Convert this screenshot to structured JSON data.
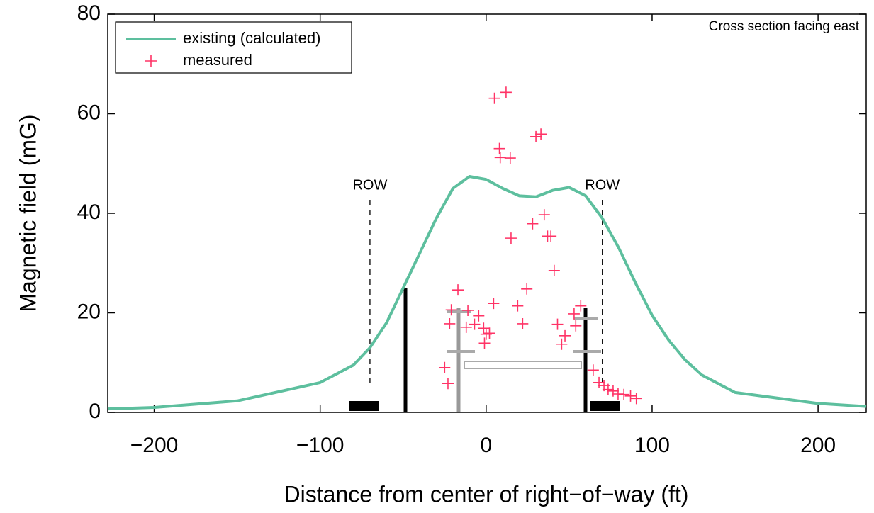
{
  "chart_data": {
    "type": "line",
    "xlabel": "Distance from center of right−of−way (ft)",
    "ylabel": "Magnetic field (mG)",
    "annotation": "Cross section facing east",
    "xlim": [
      -228,
      229
    ],
    "ylim": [
      0,
      80
    ],
    "xticks": [
      {
        "value": -200,
        "label": "−200"
      },
      {
        "value": -100,
        "label": "−100"
      },
      0,
      100,
      200
    ],
    "yticks": [
      0,
      20,
      40,
      60,
      80
    ],
    "legend": "upper left",
    "row_lines": [
      {
        "text": "ROW",
        "x": -70
      },
      {
        "text": "ROW",
        "x": 70
      }
    ],
    "series": [
      {
        "name": "existing (calculated)",
        "color": "#5dbf9e",
        "style": "line",
        "x": [
          -228,
          -200,
          -150,
          -100,
          -80,
          -70,
          -60,
          -50,
          -40,
          -30,
          -20,
          -10,
          0,
          10,
          20,
          30,
          40,
          50,
          60,
          70,
          80,
          90,
          100,
          110,
          120,
          130,
          150,
          200,
          229
        ],
        "values": [
          0.7,
          1.0,
          2.3,
          6,
          9.5,
          13,
          18,
          25,
          32,
          39,
          45,
          47.4,
          46.8,
          45,
          43.5,
          43.3,
          44.6,
          45.2,
          43.5,
          39,
          33,
          26,
          19.5,
          14.5,
          10.5,
          7.5,
          4,
          1.8,
          1.2
        ]
      },
      {
        "name": "measured",
        "color": "#ff3366",
        "style": "plus",
        "x": [
          5,
          12,
          8,
          8.5,
          14.5,
          30,
          33,
          35,
          28,
          15,
          37,
          39,
          41,
          -17,
          24.5,
          4.5,
          19,
          57,
          -21,
          -11,
          -4.5,
          -7,
          -12,
          -22,
          22,
          43,
          53,
          54,
          47.5,
          45.5,
          -1.5,
          0,
          2,
          -1,
          -25,
          -23,
          64.5,
          68,
          71,
          73.5,
          76.5,
          79.5,
          83,
          87,
          90.5
        ],
        "values": [
          63.1,
          64.3,
          53,
          51.2,
          51.1,
          55.4,
          55.9,
          39.7,
          37.9,
          35,
          35.4,
          35.4,
          28.5,
          24.6,
          24.8,
          21.9,
          21.4,
          21.4,
          20.6,
          20.5,
          19.4,
          17.7,
          17.1,
          17.8,
          17.8,
          17.7,
          19.8,
          17.4,
          15.4,
          13.7,
          16.9,
          15.7,
          15.9,
          13.9,
          9,
          5.8,
          8.5,
          6,
          5.4,
          4.6,
          4.3,
          3.7,
          3.6,
          3.3,
          2.8
        ]
      }
    ]
  }
}
